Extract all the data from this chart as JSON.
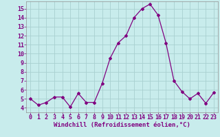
{
  "x": [
    0,
    1,
    2,
    3,
    4,
    5,
    6,
    7,
    8,
    9,
    10,
    11,
    12,
    13,
    14,
    15,
    16,
    17,
    18,
    19,
    20,
    21,
    22,
    23
  ],
  "y": [
    5.0,
    4.3,
    4.6,
    5.2,
    5.2,
    4.1,
    5.6,
    4.6,
    4.6,
    6.7,
    9.5,
    11.2,
    12.0,
    14.0,
    15.0,
    15.5,
    14.3,
    11.2,
    7.0,
    5.8,
    5.0,
    5.6,
    4.5,
    5.7
  ],
  "line_color": "#800080",
  "marker": "D",
  "marker_size": 2.0,
  "background_color": "#c8ecec",
  "grid_color": "#a8d0d0",
  "xlabel": "Windchill (Refroidissement éolien,°C)",
  "ylabel": "",
  "xlim": [
    -0.5,
    23.5
  ],
  "ylim": [
    3.5,
    15.8
  ],
  "yticks": [
    4,
    5,
    6,
    7,
    8,
    9,
    10,
    11,
    12,
    13,
    14,
    15
  ],
  "xticks": [
    0,
    1,
    2,
    3,
    4,
    5,
    6,
    7,
    8,
    9,
    10,
    11,
    12,
    13,
    14,
    15,
    16,
    17,
    18,
    19,
    20,
    21,
    22,
    23
  ],
  "tick_color": "#800080",
  "label_color": "#800080",
  "xlabel_fontsize": 6.5,
  "tick_fontsize": 6.0,
  "spine_color": "#909090"
}
